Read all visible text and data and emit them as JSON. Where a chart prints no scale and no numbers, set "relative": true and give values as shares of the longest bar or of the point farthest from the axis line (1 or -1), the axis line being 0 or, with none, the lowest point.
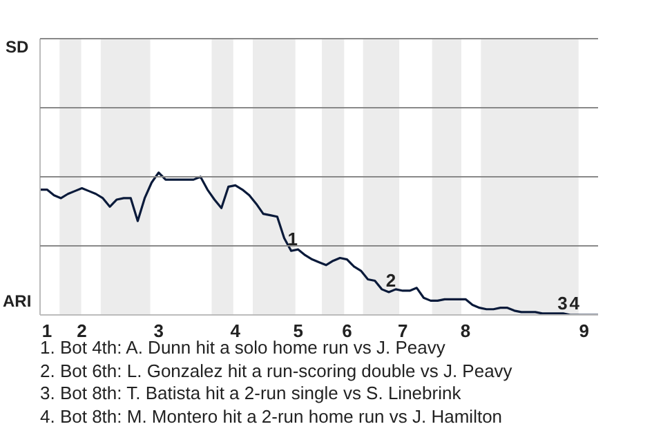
{
  "chart_data": {
    "type": "line",
    "relative": true,
    "categories": [
      null,
      "1",
      null,
      null,
      null,
      null,
      "2",
      null,
      null,
      null,
      null,
      null,
      null,
      null,
      null,
      null,
      null,
      "3",
      null,
      null,
      null,
      null,
      null,
      null,
      null,
      null,
      null,
      null,
      "4",
      null,
      null,
      null,
      null,
      null,
      null,
      null,
      null,
      "5",
      null,
      null,
      null,
      null,
      null,
      null,
      "6",
      null,
      null,
      null,
      null,
      null,
      null,
      null,
      "7",
      null,
      null,
      null,
      null,
      null,
      null,
      null,
      null,
      "8",
      null,
      null,
      null,
      null,
      null,
      null,
      null,
      null,
      null,
      null,
      null,
      null,
      null,
      null,
      null,
      null,
      "9",
      null,
      null
    ],
    "series": [
      {
        "color": "#0a1a3a",
        "values": [
          0.88,
          0.88,
          0.84,
          0.82,
          0.85,
          0.87,
          0.89,
          0.87,
          0.85,
          0.82,
          0.76,
          0.81,
          0.82,
          0.82,
          0.66,
          0.82,
          0.93,
          1,
          0.95,
          0.95,
          0.95,
          0.95,
          0.95,
          0.97,
          0.88,
          0.81,
          0.75,
          0.9,
          0.91,
          0.88,
          0.84,
          0.78,
          0.71,
          0.7,
          0.69,
          0.54,
          0.45,
          0.46,
          0.42,
          0.39,
          0.37,
          0.35,
          0.38,
          0.4,
          0.39,
          0.34,
          0.31,
          0.25,
          0.24,
          0.18,
          0.16,
          0.18,
          0.17,
          0.17,
          0.19,
          0.12,
          0.1,
          0.1,
          0.11,
          0.11,
          0.11,
          0.11,
          0.07,
          0.05,
          0.04,
          0.04,
          0.05,
          0.05,
          0.03,
          0.02,
          0.02,
          0.02,
          0.01,
          0.01,
          0.01,
          0.01,
          0,
          0,
          0,
          0,
          0
        ]
      }
    ],
    "ref_lines": [
      {
        "axis": "y",
        "value": 0.485,
        "color": "#888888"
      },
      {
        "axis": "y",
        "value": 0.97,
        "color": "#888888"
      },
      {
        "axis": "y",
        "value": 1.455,
        "color": "#888888"
      }
    ],
    "marker": "none",
    "line_style": "solid",
    "legend": false,
    "annotations": [
      "SD",
      "ARI",
      "1",
      "2",
      "3",
      "4",
      "1. Bot 4th: A. Dunn hit a solo home run vs J. Peavy",
      "2. Bot 6th: L. Gonzalez hit a run-scoring double vs J. Peavy",
      "3. Bot 8th: T. Batista hit a 2-run single vs S. Linebrink",
      "4. Bot 8th: M. Montero hit a 2-run home run vs J. Hamilton"
    ]
  }
}
